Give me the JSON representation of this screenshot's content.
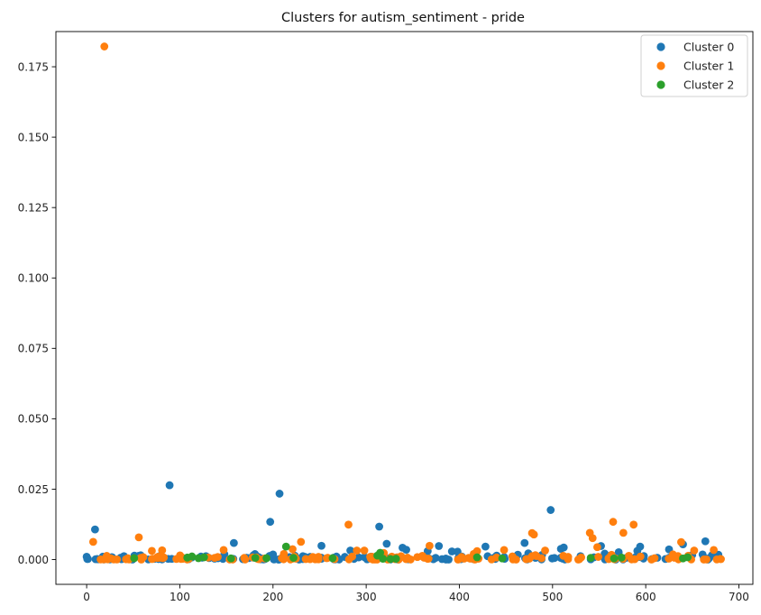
{
  "chart_data": {
    "type": "scatter",
    "title": "Clusters for autism_sentiment - pride",
    "xlabel": "",
    "ylabel": "",
    "xlim": [
      -33,
      715
    ],
    "ylim": [
      -0.0088,
      0.1875
    ],
    "xticks": [
      0,
      100,
      200,
      300,
      400,
      500,
      600,
      700
    ],
    "yticks": [
      0.0,
      0.025,
      0.05,
      0.075,
      0.1,
      0.125,
      0.15,
      0.175
    ],
    "ytick_labels": [
      "0.000",
      "0.025",
      "0.050",
      "0.075",
      "0.100",
      "0.125",
      "0.150",
      "0.175"
    ],
    "grid": false,
    "legend_position": "top-right",
    "series": [
      {
        "name": "Cluster 0",
        "color": "#1f77b4",
        "points": [
          [
            0,
            0.001
          ],
          [
            9,
            0.0107
          ],
          [
            40,
            0.0012
          ],
          [
            58,
            0.0015
          ],
          [
            89,
            0.0264
          ],
          [
            128,
            0.0012
          ],
          [
            158,
            0.0059
          ],
          [
            179,
            0.0015
          ],
          [
            197,
            0.0134
          ],
          [
            200,
            0.0018
          ],
          [
            207,
            0.0234
          ],
          [
            232,
            0.0011
          ],
          [
            252,
            0.0049
          ],
          [
            283,
            0.0032
          ],
          [
            314,
            0.0117
          ],
          [
            322,
            0.0056
          ],
          [
            339,
            0.0042
          ],
          [
            343,
            0.0035
          ],
          [
            366,
            0.003
          ],
          [
            378,
            0.0048
          ],
          [
            392,
            0.0029
          ],
          [
            398,
            0.0028
          ],
          [
            428,
            0.0046
          ],
          [
            440,
            0.0014
          ],
          [
            470,
            0.0059
          ],
          [
            474,
            0.0022
          ],
          [
            498,
            0.0176
          ],
          [
            509,
            0.0038
          ],
          [
            512,
            0.0043
          ],
          [
            530,
            0.0012
          ],
          [
            552,
            0.0048
          ],
          [
            556,
            0.0021
          ],
          [
            571,
            0.0026
          ],
          [
            591,
            0.0031
          ],
          [
            594,
            0.0046
          ],
          [
            625,
            0.0036
          ],
          [
            640,
            0.0054
          ],
          [
            648,
            0.0013
          ],
          [
            661,
            0.0018
          ],
          [
            664,
            0.0065
          ],
          [
            671,
            0.0015
          ],
          [
            678,
            0.0017
          ]
        ]
      },
      {
        "name": "Cluster 1",
        "color": "#ff7f0e",
        "points": [
          [
            19,
            0.1822
          ],
          [
            7,
            0.0063
          ],
          [
            56,
            0.0079
          ],
          [
            70,
            0.0031
          ],
          [
            81,
            0.0033
          ],
          [
            147,
            0.0034
          ],
          [
            221,
            0.0037
          ],
          [
            230,
            0.0063
          ],
          [
            281,
            0.0124
          ],
          [
            290,
            0.0032
          ],
          [
            298,
            0.0032
          ],
          [
            319,
            0.0023
          ],
          [
            368,
            0.0049
          ],
          [
            419,
            0.003
          ],
          [
            448,
            0.0034
          ],
          [
            478,
            0.0094
          ],
          [
            480,
            0.0089
          ],
          [
            492,
            0.0032
          ],
          [
            540,
            0.0095
          ],
          [
            543,
            0.0076
          ],
          [
            548,
            0.0044
          ],
          [
            565,
            0.0134
          ],
          [
            576,
            0.0095
          ],
          [
            587,
            0.0124
          ],
          [
            638,
            0.0062
          ],
          [
            652,
            0.0032
          ],
          [
            673,
            0.0034
          ],
          [
            680,
            0.0002
          ]
        ]
      },
      {
        "name": "Cluster 2",
        "color": "#2ca02c",
        "points": [
          [
            51,
            0.0005
          ],
          [
            108,
            0.0007
          ],
          [
            113,
            0.0011
          ],
          [
            120,
            0.0005
          ],
          [
            126,
            0.0008
          ],
          [
            155,
            0.0004
          ],
          [
            181,
            0.0006
          ],
          [
            193,
            0.0005
          ],
          [
            214,
            0.0046
          ],
          [
            222,
            0.0006
          ],
          [
            264,
            0.0005
          ],
          [
            312,
            0.0014
          ],
          [
            315,
            0.0024
          ],
          [
            318,
            0.0003
          ],
          [
            326,
            0.0002
          ],
          [
            332,
            0.0003
          ],
          [
            419,
            0.0008
          ],
          [
            446,
            0.0004
          ],
          [
            541,
            0.0006
          ],
          [
            566,
            0.0004
          ],
          [
            574,
            0.0007
          ],
          [
            640,
            0.0004
          ],
          [
            645,
            0.0008
          ]
        ]
      }
    ]
  }
}
